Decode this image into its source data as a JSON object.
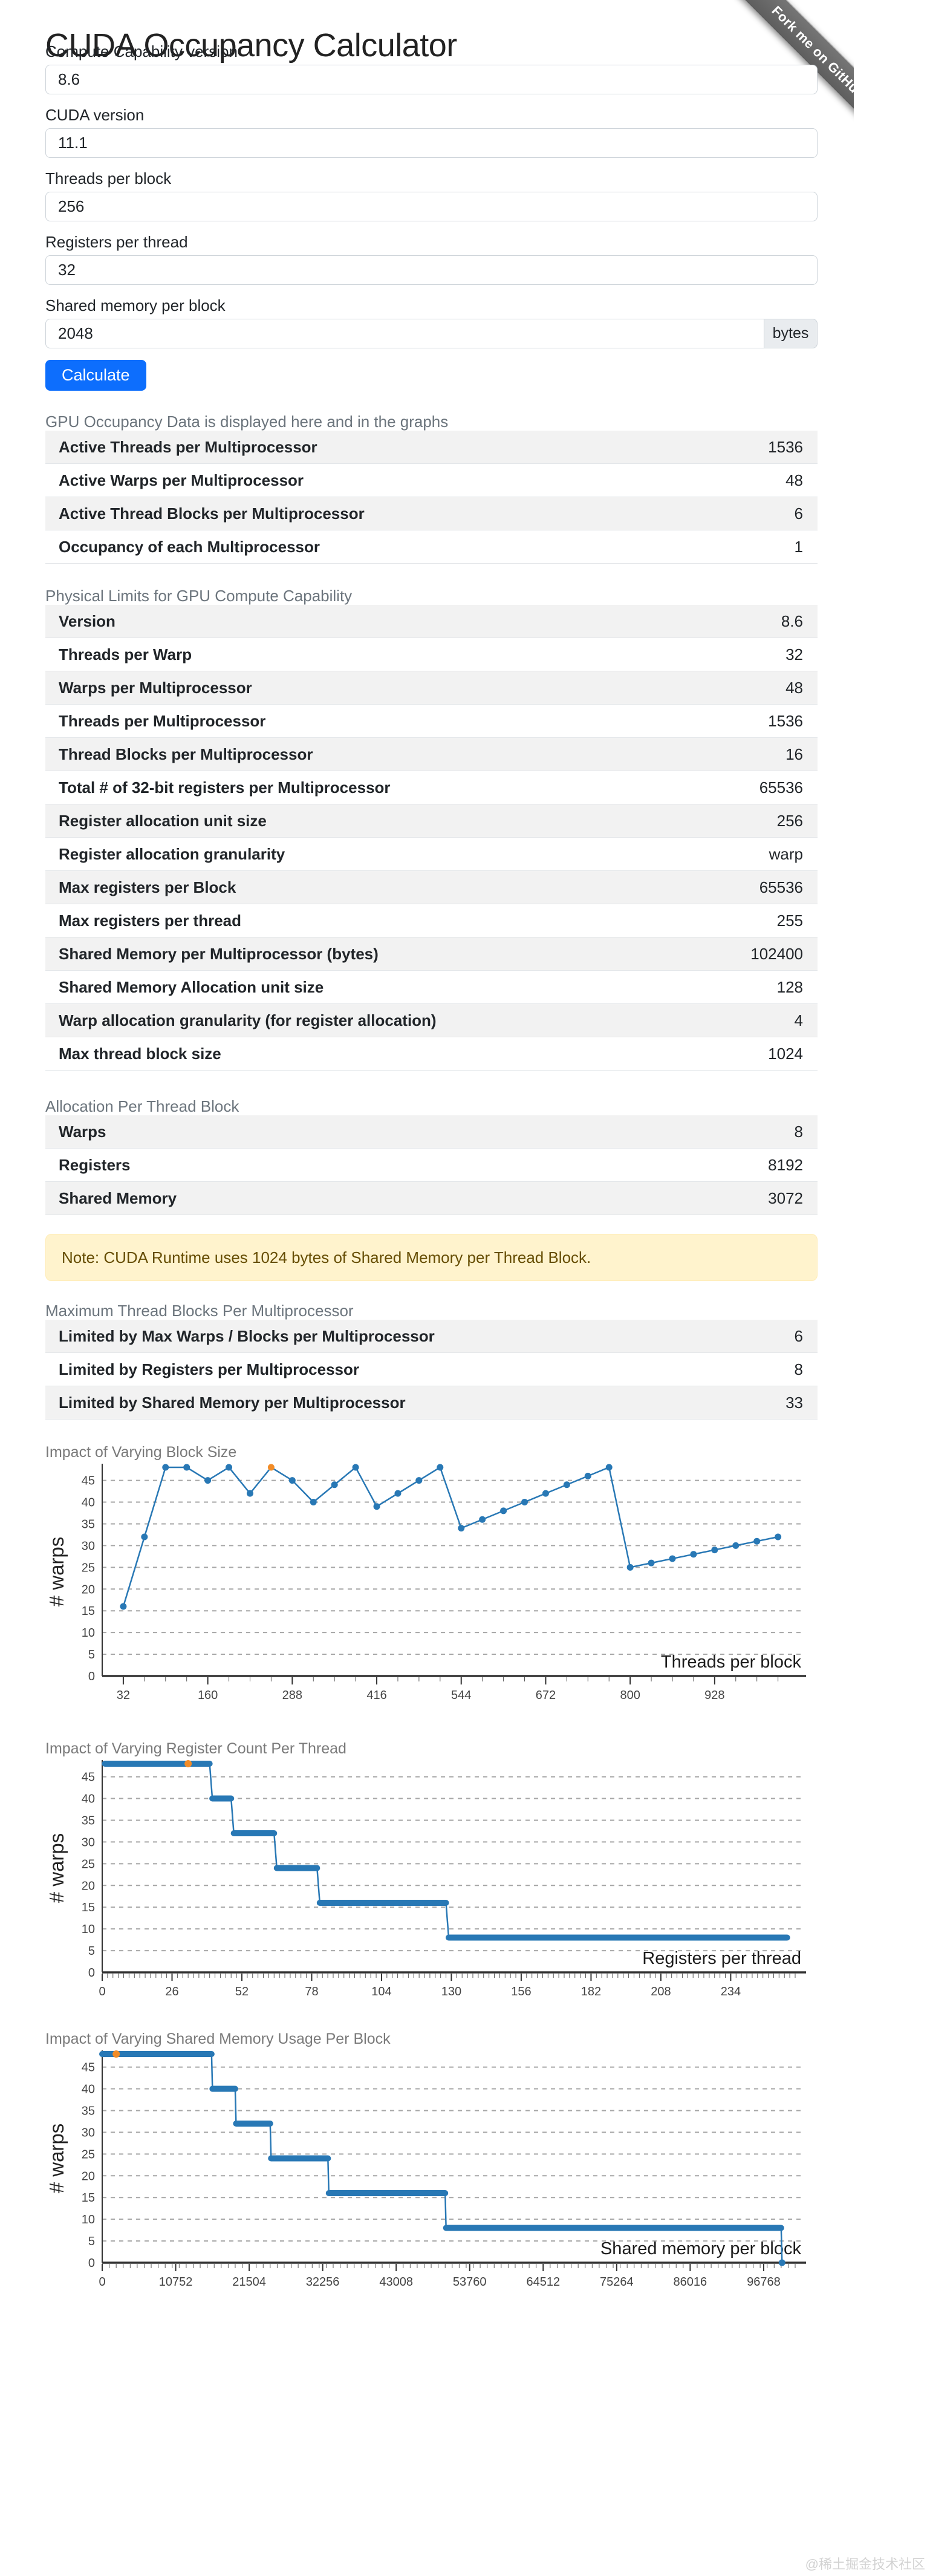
{
  "page": {
    "title": "CUDA Occupancy Calculator",
    "ribbon": "Fork me on GitHub",
    "watermark": "@稀土掘金技术社区"
  },
  "form": {
    "fields": [
      {
        "label": "Compute Capability version",
        "value": "8.6"
      },
      {
        "label": "CUDA version",
        "value": "11.1"
      },
      {
        "label": "Threads per block",
        "value": "256"
      },
      {
        "label": "Registers per thread",
        "value": "32"
      },
      {
        "label": "Shared memory per block",
        "value": "2048",
        "suffix": "bytes"
      }
    ],
    "submit_label": "Calculate"
  },
  "sections": [
    {
      "heading": "GPU Occupancy Data is displayed here and in the graphs",
      "rows": [
        {
          "label": "Active Threads per Multiprocessor",
          "value": "1536"
        },
        {
          "label": "Active Warps per Multiprocessor",
          "value": "48"
        },
        {
          "label": "Active Thread Blocks per Multiprocessor",
          "value": "6"
        },
        {
          "label": "Occupancy of each Multiprocessor",
          "value": "1"
        }
      ]
    },
    {
      "heading": "Physical Limits for GPU Compute Capability",
      "rows": [
        {
          "label": "Version",
          "value": "8.6"
        },
        {
          "label": "Threads per Warp",
          "value": "32"
        },
        {
          "label": "Warps per Multiprocessor",
          "value": "48"
        },
        {
          "label": "Threads per Multiprocessor",
          "value": "1536"
        },
        {
          "label": "Thread Blocks per Multiprocessor",
          "value": "16"
        },
        {
          "label": "Total # of 32-bit registers per Multiprocessor",
          "value": "65536"
        },
        {
          "label": "Register allocation unit size",
          "value": "256"
        },
        {
          "label": "Register allocation granularity",
          "value": "warp"
        },
        {
          "label": "Max registers per Block",
          "value": "65536"
        },
        {
          "label": "Max registers per thread",
          "value": "255"
        },
        {
          "label": "Shared Memory per Multiprocessor (bytes)",
          "value": "102400"
        },
        {
          "label": "Shared Memory Allocation unit size",
          "value": "128"
        },
        {
          "label": "Warp allocation granularity (for register allocation)",
          "value": "4"
        },
        {
          "label": "Max thread block size",
          "value": "1024"
        }
      ]
    },
    {
      "heading": "Allocation Per Thread Block",
      "rows": [
        {
          "label": "Warps",
          "value": "8"
        },
        {
          "label": "Registers",
          "value": "8192"
        },
        {
          "label": "Shared Memory",
          "value": "3072"
        }
      ]
    },
    {
      "heading": "Maximum Thread Blocks Per Multiprocessor",
      "rows": [
        {
          "label": "Limited by Max Warps / Blocks per Multiprocessor",
          "value": "6"
        },
        {
          "label": "Limited by Registers per Multiprocessor",
          "value": "8"
        },
        {
          "label": "Limited by Shared Memory per Multiprocessor",
          "value": "33"
        }
      ]
    }
  ],
  "note": "Note: CUDA Runtime uses 1024 bytes of Shared Memory per Thread Block.",
  "colors": {
    "accent": "#0d6efd",
    "chart_line": "#2878b5",
    "chart_highlight": "#f28c28",
    "grid": "#a6a6a6",
    "axis": "#333333",
    "alert_bg": "#fff3cd",
    "alert_text": "#664d03"
  },
  "chart_data": [
    {
      "type": "line",
      "title": "Impact of Varying Block Size",
      "xlabel": "Threads per block",
      "ylabel": "# warps",
      "x": [
        32,
        64,
        96,
        128,
        160,
        192,
        224,
        256,
        288,
        320,
        352,
        384,
        416,
        448,
        480,
        512,
        544,
        576,
        608,
        640,
        672,
        704,
        736,
        768,
        800,
        832,
        864,
        896,
        928,
        960,
        992,
        1024
      ],
      "values": [
        16,
        32,
        48,
        48,
        45,
        48,
        42,
        48,
        45,
        40,
        44,
        48,
        39,
        42,
        45,
        48,
        34,
        36,
        38,
        40,
        42,
        44,
        46,
        48,
        25,
        26,
        27,
        28,
        29,
        30,
        31,
        32
      ],
      "highlight_x": 256,
      "xticks": [
        32,
        160,
        288,
        416,
        544,
        672,
        800,
        928
      ],
      "minor_step": 32,
      "xlim": [
        0,
        1050
      ],
      "ylim": [
        0,
        48
      ],
      "yticks": [
        0,
        5,
        10,
        15,
        20,
        25,
        30,
        35,
        40,
        45
      ],
      "grid": true,
      "legend": "none"
    },
    {
      "type": "step",
      "title": "Impact of Varying Register Count Per Thread",
      "xlabel": "Registers per thread",
      "ylabel": "# warps",
      "levels": [
        [
          1,
          40,
          48
        ],
        [
          41,
          48,
          40
        ],
        [
          49,
          64,
          32
        ],
        [
          65,
          80,
          24
        ],
        [
          81,
          128,
          16
        ],
        [
          129,
          255,
          8
        ]
      ],
      "highlight": [
        32,
        48
      ],
      "xticks": [
        0,
        26,
        52,
        78,
        104,
        130,
        156,
        182,
        208,
        234
      ],
      "minor_step": 2,
      "xlim": [
        0,
        258
      ],
      "ylim": [
        0,
        48
      ],
      "yticks": [
        0,
        5,
        10,
        15,
        20,
        25,
        30,
        35,
        40,
        45
      ],
      "grid": true,
      "legend": "none"
    },
    {
      "type": "step",
      "title": "Impact of Varying Shared Memory Usage Per Block",
      "xlabel": "Shared memory per block",
      "ylabel": "# warps",
      "levels": [
        [
          0,
          16000,
          48
        ],
        [
          16128,
          19456,
          40
        ],
        [
          19584,
          24576,
          32
        ],
        [
          24704,
          33024,
          24
        ],
        [
          33152,
          50176,
          16
        ],
        [
          50304,
          99328,
          8
        ]
      ],
      "end_drop": [
        99456,
        0
      ],
      "highlight": [
        2048,
        48
      ],
      "xticks": [
        0,
        10752,
        21504,
        32256,
        43008,
        53760,
        64512,
        75264,
        86016,
        96768
      ],
      "minor_step": 1024,
      "xlim": [
        0,
        101376
      ],
      "ylim": [
        0,
        48
      ],
      "yticks": [
        0,
        5,
        10,
        15,
        20,
        25,
        30,
        35,
        40,
        45
      ],
      "grid": true,
      "legend": "none"
    }
  ]
}
